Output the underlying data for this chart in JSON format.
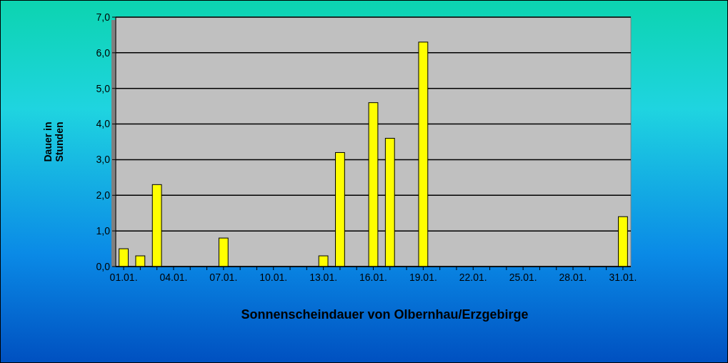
{
  "chart_data": {
    "type": "bar",
    "title": "Sonnenscheindauer von Olbernhau/Erzgebirge",
    "ylabel": "Dauer in Stunden",
    "categories": [
      "01.01.",
      null,
      null,
      "04.01.",
      null,
      null,
      "07.01.",
      null,
      null,
      "10.01.",
      null,
      null,
      "13.01.",
      null,
      null,
      "16.01.",
      null,
      null,
      "19.01.",
      null,
      null,
      "22.01.",
      null,
      null,
      "25.01.",
      null,
      null,
      "28.01.",
      null,
      null,
      "31.01."
    ],
    "values": [
      0.5,
      0.3,
      2.3,
      0,
      0,
      0,
      0.8,
      0,
      0,
      0,
      0,
      0,
      0.3,
      3.2,
      0,
      4.6,
      3.6,
      0,
      6.3,
      0,
      0,
      0,
      0,
      0,
      0,
      0,
      0,
      0,
      0,
      0,
      1.4
    ],
    "color": "#ffff00",
    "ylim": [
      0,
      7
    ],
    "yticks": [
      {
        "value": 0,
        "label": "0,0"
      },
      {
        "value": 1,
        "label": "1,0"
      },
      {
        "value": 2,
        "label": "2,0"
      },
      {
        "value": 3,
        "label": "3,0"
      },
      {
        "value": 4,
        "label": "4,0"
      },
      {
        "value": 5,
        "label": "5,0"
      },
      {
        "value": 6,
        "label": "6,0"
      },
      {
        "value": 7,
        "label": "7,0"
      }
    ],
    "grid": "y"
  }
}
